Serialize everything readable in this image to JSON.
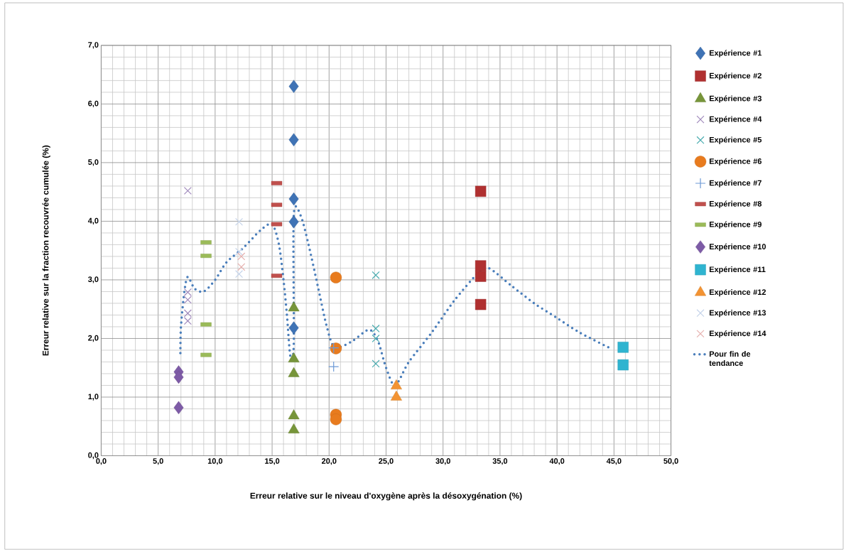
{
  "chart_data": {
    "type": "scatter",
    "xlabel": "Erreur relative sur le niveau d'oxygène après la désoxygénation (%)",
    "ylabel": "Erreur relative sur la fraction recouvrée cumulée (%)",
    "xlim": [
      0,
      50
    ],
    "ylim": [
      0,
      7
    ],
    "xticks": [
      {
        "value": 0,
        "label": "0,0"
      },
      {
        "value": 5,
        "label": "5,0"
      },
      {
        "value": 10,
        "label": "10,0"
      },
      {
        "value": 15,
        "label": "15,0"
      },
      {
        "value": 20,
        "label": "20,0"
      },
      {
        "value": 25,
        "label": "25,0"
      },
      {
        "value": 30,
        "label": "30,0"
      },
      {
        "value": 35,
        "label": "35,0"
      },
      {
        "value": 40,
        "label": "40,0"
      },
      {
        "value": 45,
        "label": "45,0"
      },
      {
        "value": 50,
        "label": "50,0"
      }
    ],
    "yticks": [
      {
        "value": 0,
        "label": "0,0"
      },
      {
        "value": 1,
        "label": "1,0"
      },
      {
        "value": 2,
        "label": "2,0"
      },
      {
        "value": 3,
        "label": "3,0"
      },
      {
        "value": 4,
        "label": "4,0"
      },
      {
        "value": 5,
        "label": "5,0"
      },
      {
        "value": 6,
        "label": "6,0"
      },
      {
        "value": 7,
        "label": "7,0"
      }
    ],
    "grid": true,
    "legend": "right",
    "series": [
      {
        "name": "Expérience #1",
        "color": "#3f73b5",
        "marker": "diamond",
        "x": [
          16.9,
          16.9,
          16.9,
          16.9,
          16.9
        ],
        "values": [
          6.3,
          5.39,
          4.38,
          3.99,
          2.18
        ]
      },
      {
        "name": "Expérience #2",
        "color": "#b03030",
        "marker": "square",
        "x": [
          33.3,
          33.3,
          33.3,
          33.3
        ],
        "values": [
          4.51,
          3.24,
          3.06,
          2.58
        ]
      },
      {
        "name": "Expérience #3",
        "color": "#77953a",
        "marker": "triangle",
        "x": [
          16.9,
          16.9,
          16.9,
          16.9,
          16.9
        ],
        "values": [
          2.52,
          1.65,
          1.4,
          0.68,
          0.44
        ]
      },
      {
        "name": "Expérience #4",
        "color": "#9f88bb",
        "marker": "cross",
        "x": [
          7.6,
          7.6,
          7.6,
          7.6,
          7.6
        ],
        "values": [
          4.52,
          2.79,
          2.66,
          2.43,
          2.3
        ]
      },
      {
        "name": "Expérience #5",
        "color": "#4aacb0",
        "marker": "cross",
        "x": [
          24.1,
          24.1,
          24.1,
          24.1
        ],
        "values": [
          3.08,
          2.17,
          2.0,
          1.57
        ]
      },
      {
        "name": "Expérience #6",
        "color": "#e87b1e",
        "marker": "circle",
        "x": [
          20.6,
          20.6,
          20.6,
          20.6
        ],
        "values": [
          3.04,
          1.83,
          0.7,
          0.62
        ]
      },
      {
        "name": "Expérience #7",
        "color": "#6d9ad6",
        "marker": "plus",
        "x": [
          20.4,
          20.4
        ],
        "values": [
          1.84,
          1.52
        ]
      },
      {
        "name": "Expérience #8",
        "color": "#c0504d",
        "x": [
          15.4,
          15.4,
          15.4,
          15.4
        ],
        "values": [
          4.65,
          4.28,
          3.95,
          3.07
        ]
      },
      {
        "name": "Expérience #9",
        "color": "#9bbb59",
        "x": [
          9.2,
          9.2,
          9.2,
          9.2
        ],
        "values": [
          3.64,
          3.41,
          2.24,
          1.72
        ]
      },
      {
        "name": "Expérience #10",
        "color": "#7d5ba6",
        "marker": "diamond",
        "x": [
          6.8,
          6.8,
          6.8
        ],
        "values": [
          1.43,
          1.34,
          0.82
        ]
      },
      {
        "name": "Expérience #11",
        "color": "#2fb4d0",
        "marker": "square",
        "x": [
          45.8,
          45.8
        ],
        "values": [
          1.85,
          1.55
        ]
      },
      {
        "name": "Expérience #12",
        "color": "#f39332",
        "marker": "triangle",
        "x": [
          25.9,
          25.9
        ],
        "values": [
          1.19,
          1.0
        ]
      },
      {
        "name": "Expérience #13",
        "color": "#c6d4ea",
        "marker": "cross",
        "x": [
          12.1,
          12.1,
          12.1
        ],
        "values": [
          3.99,
          3.48,
          3.1
        ]
      },
      {
        "name": "Expérience #14",
        "color": "#e6b0ae",
        "marker": "cross",
        "x": [
          12.3,
          12.3
        ],
        "values": [
          3.4,
          3.22
        ]
      },
      {
        "name": "Pour fin de tendance",
        "type": "line",
        "line_style": "dotted",
        "marker": "none",
        "color": "#4a7ebb",
        "x": [
          6.95,
          7.0,
          7.3,
          7.6,
          8.2,
          9.0,
          10.0,
          11.0,
          12.5,
          14.0,
          15.0,
          15.6,
          16.0,
          16.3,
          16.6,
          16.9,
          16.9,
          17.5,
          18.2,
          19.0,
          19.8,
          20.5,
          22.0,
          23.5,
          24.3,
          25.0,
          25.8,
          27.0,
          29.0,
          31.0,
          33.0,
          34.0,
          36.0,
          38.0,
          40.0,
          42.0,
          44.5
        ],
        "values": [
          1.75,
          2.2,
          2.8,
          3.05,
          2.85,
          2.8,
          3.0,
          3.3,
          3.55,
          3.85,
          3.95,
          3.6,
          3.0,
          2.4,
          1.7,
          1.9,
          4.1,
          4.1,
          3.6,
          2.9,
          2.2,
          1.85,
          1.95,
          2.15,
          1.95,
          1.5,
          1.2,
          1.6,
          2.1,
          2.65,
          3.1,
          3.2,
          2.9,
          2.6,
          2.35,
          2.1,
          1.85
        ]
      }
    ]
  }
}
